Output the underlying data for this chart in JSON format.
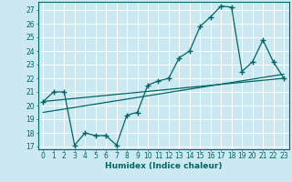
{
  "title": "",
  "xlabel": "Humidex (Indice chaleur)",
  "bg_color": "#cce8f0",
  "grid_color": "#ffffff",
  "line_color": "#006666",
  "xlim": [
    -0.5,
    23.5
  ],
  "ylim": [
    16.8,
    27.6
  ],
  "yticks": [
    17,
    18,
    19,
    20,
    21,
    22,
    23,
    24,
    25,
    26,
    27
  ],
  "xticks": [
    0,
    1,
    2,
    3,
    4,
    5,
    6,
    7,
    8,
    9,
    10,
    11,
    12,
    13,
    14,
    15,
    16,
    17,
    18,
    19,
    20,
    21,
    22,
    23
  ],
  "series1_x": [
    0,
    1,
    2,
    3,
    4,
    5,
    6,
    7,
    8,
    9,
    10,
    11,
    12,
    13,
    14,
    15,
    16,
    17,
    18,
    19,
    20,
    21,
    22,
    23
  ],
  "series1_y": [
    20.3,
    21.0,
    21.0,
    17.1,
    18.0,
    17.8,
    17.8,
    17.1,
    19.3,
    19.5,
    21.5,
    21.8,
    22.0,
    23.5,
    24.0,
    25.8,
    26.5,
    27.3,
    27.2,
    22.5,
    23.2,
    24.8,
    23.2,
    22.0
  ],
  "series2_x": [
    0,
    23
  ],
  "series2_y": [
    20.3,
    22.0
  ],
  "series3_x": [
    0,
    23
  ],
  "series3_y": [
    19.5,
    22.3
  ],
  "tick_fontsize": 5.5,
  "xlabel_fontsize": 6.5
}
